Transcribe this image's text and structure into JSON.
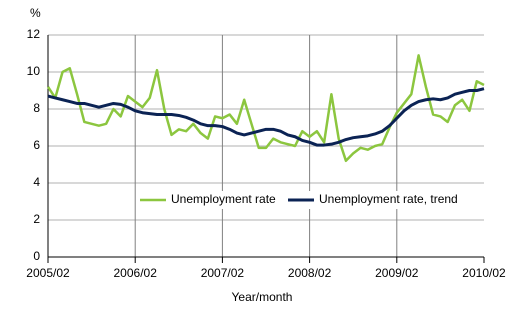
{
  "chart_data": {
    "type": "line",
    "y_label": "%",
    "x_label": "Year/month",
    "categories": [
      "2005/02",
      null,
      null,
      null,
      null,
      null,
      null,
      null,
      null,
      null,
      null,
      null,
      "2006/02",
      null,
      null,
      null,
      null,
      null,
      null,
      null,
      null,
      null,
      null,
      null,
      "2007/02",
      null,
      null,
      null,
      null,
      null,
      null,
      null,
      null,
      null,
      null,
      null,
      "2008/02",
      null,
      null,
      null,
      null,
      null,
      null,
      null,
      null,
      null,
      null,
      null,
      "2009/02",
      null,
      null,
      null,
      null,
      null,
      null,
      null,
      null,
      null,
      null,
      null,
      "2010/02"
    ],
    "series": [
      {
        "name": "Unemployment rate",
        "color": "#8cc63f",
        "values": [
          9.2,
          8.6,
          10.0,
          10.2,
          8.8,
          7.3,
          7.2,
          7.1,
          7.2,
          8.0,
          7.6,
          8.7,
          8.4,
          8.1,
          8.6,
          10.1,
          8.0,
          6.6,
          6.9,
          6.8,
          7.2,
          6.7,
          6.4,
          7.6,
          7.5,
          7.7,
          7.2,
          8.5,
          7.2,
          5.9,
          5.9,
          6.4,
          6.2,
          6.1,
          6.0,
          6.8,
          6.5,
          6.8,
          6.2,
          8.8,
          6.4,
          5.2,
          5.6,
          5.9,
          5.8,
          6.0,
          6.1,
          7.0,
          7.8,
          8.3,
          8.8,
          10.9,
          9.2,
          7.7,
          7.6,
          7.3,
          8.2,
          8.5,
          7.9,
          9.5,
          9.3
        ]
      },
      {
        "name": "Unemployment rate, trend",
        "color": "#0b2354",
        "values": [
          8.7,
          8.6,
          8.5,
          8.4,
          8.3,
          8.3,
          8.2,
          8.1,
          8.2,
          8.3,
          8.25,
          8.1,
          7.9,
          7.8,
          7.75,
          7.7,
          7.7,
          7.7,
          7.65,
          7.55,
          7.4,
          7.2,
          7.1,
          7.1,
          7.05,
          6.9,
          6.7,
          6.6,
          6.7,
          6.8,
          6.9,
          6.9,
          6.8,
          6.6,
          6.5,
          6.3,
          6.2,
          6.05,
          6.05,
          6.1,
          6.2,
          6.35,
          6.45,
          6.5,
          6.55,
          6.65,
          6.8,
          7.1,
          7.5,
          7.9,
          8.2,
          8.4,
          8.5,
          8.55,
          8.5,
          8.6,
          8.8,
          8.9,
          9.0,
          9.0,
          9.1
        ]
      }
    ],
    "ylim": [
      0,
      12
    ],
    "yticks": [
      0,
      2,
      4,
      6,
      8,
      10,
      12
    ],
    "grid": true
  }
}
